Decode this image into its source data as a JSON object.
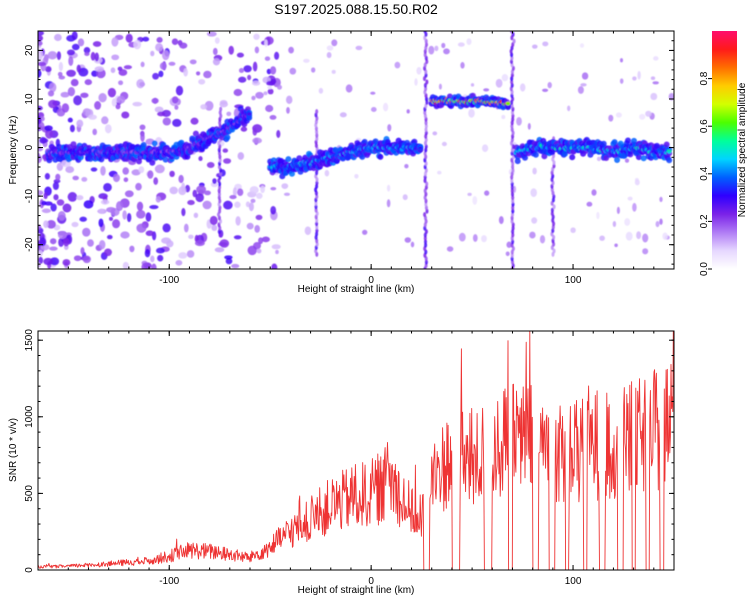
{
  "title": "S197.2025.088.15.50.R02",
  "chart_data": [
    {
      "type": "heatmap",
      "xlabel": "Height of straight line (km)",
      "ylabel": "Frequency (Hz)",
      "xlim": [
        -165,
        150
      ],
      "ylim": [
        -25,
        24
      ],
      "xticks": [
        -100,
        0,
        100
      ],
      "yticks": [
        -20,
        -10,
        0,
        10,
        20
      ],
      "colorbar": {
        "label": "Normalized spectral amplitude",
        "range": [
          0,
          1
        ],
        "ticks": [
          "0.0",
          "0.2",
          "0.4",
          "0.6",
          "0.8"
        ],
        "colors": [
          "#ffffff",
          "#e6d7ff",
          "#b07cf5",
          "#7a22e8",
          "#2f00ff",
          "#0060ff",
          "#00d4ff",
          "#00ff9a",
          "#4cff00",
          "#d2ff00",
          "#ffcc00",
          "#ff6e00",
          "#ff1a1a",
          "#ff0d6d"
        ]
      },
      "ridges": [
        {
          "x": [
            -160,
            -140,
            -120,
            -100,
            -90,
            -80,
            -70,
            -60
          ],
          "freq": [
            -1,
            -1,
            -1,
            -1,
            0,
            2,
            4,
            7
          ],
          "amplitude": 0.3
        },
        {
          "x": [
            -50,
            -40,
            -30,
            -20,
            -10,
            0,
            10,
            20,
            25
          ],
          "freq": [
            -4,
            -4,
            -3,
            -2,
            -1,
            0,
            0,
            0,
            0
          ],
          "amplitude": 0.45
        },
        {
          "x": [
            30,
            40,
            50,
            60,
            68
          ],
          "freq": [
            9.5,
            9.5,
            9.5,
            9.5,
            9
          ],
          "amplitude": 0.9
        },
        {
          "x": [
            72,
            80,
            90,
            100,
            110,
            120,
            130,
            140,
            148
          ],
          "freq": [
            -1,
            0,
            0,
            0,
            0,
            -1,
            0,
            -1,
            -1
          ],
          "amplitude": 0.5
        }
      ]
    },
    {
      "type": "line",
      "xlabel": "Height of straight line (km)",
      "ylabel": "SNR (10 * v/v)",
      "xlim": [
        -165,
        150
      ],
      "ylim": [
        0,
        1560
      ],
      "xticks": [
        -100,
        0,
        100
      ],
      "yticks": [
        0,
        500,
        1000,
        1500
      ],
      "color": "#ee3333",
      "series": [
        {
          "x": [
            -165,
            -150,
            -130,
            -110,
            -100,
            -90,
            -80,
            -70,
            -60,
            -50,
            -40,
            -30,
            -20,
            -10,
            0,
            10,
            20,
            25,
            30,
            40,
            50,
            60,
            70,
            80,
            90,
            100,
            110,
            120,
            130,
            140,
            150
          ],
          "y": [
            20,
            25,
            40,
            60,
            90,
            130,
            120,
            100,
            80,
            150,
            250,
            330,
            420,
            470,
            500,
            580,
            380,
            350,
            580,
            750,
            700,
            800,
            850,
            850,
            800,
            750,
            830,
            800,
            850,
            900,
            1000
          ]
        }
      ]
    }
  ]
}
